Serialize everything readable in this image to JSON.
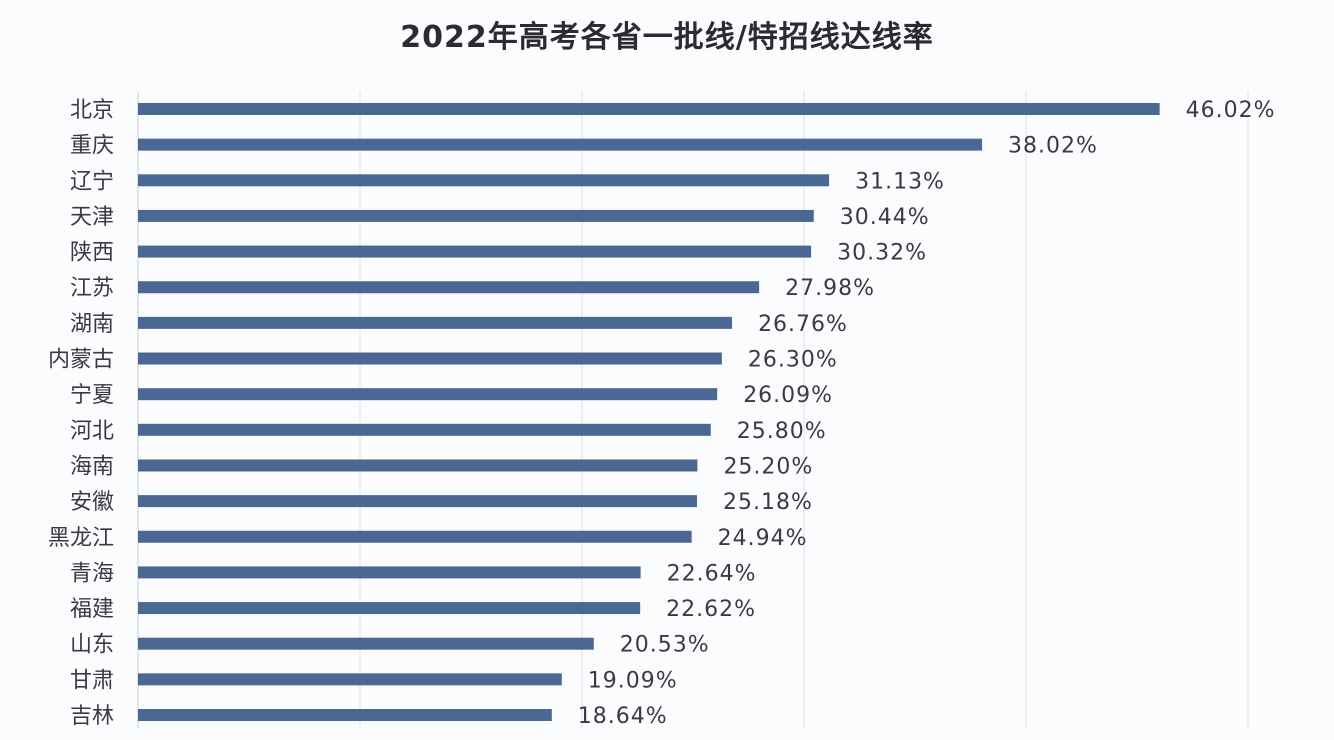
{
  "chart_data": {
    "type": "bar",
    "orientation": "horizontal",
    "title": "2022年高考各省一批线/特招线达线率",
    "xlabel": "",
    "ylabel": "",
    "xlim": [
      0,
      50
    ],
    "grid": true,
    "grid_step": 10,
    "bar_color": "#4b6894",
    "categories": [
      "北京",
      "重庆",
      "辽宁",
      "天津",
      "陕西",
      "江苏",
      "湖南",
      "内蒙古",
      "宁夏",
      "河北",
      "海南",
      "安徽",
      "黑龙江",
      "青海",
      "福建",
      "山东",
      "甘肃",
      "吉林"
    ],
    "values": [
      46.02,
      38.02,
      31.13,
      30.44,
      30.32,
      27.98,
      26.76,
      26.3,
      26.09,
      25.8,
      25.2,
      25.18,
      24.94,
      22.64,
      22.62,
      20.53,
      19.09,
      18.64
    ],
    "data_labels": [
      "46.02%",
      "38.02%",
      "31.13%",
      "30.44%",
      "30.32%",
      "27.98%",
      "26.76%",
      "26.30%",
      "26.09%",
      "25.80%",
      "25.20%",
      "25.18%",
      "24.94%",
      "22.64%",
      "22.62%",
      "20.53%",
      "19.09%",
      "18.64%"
    ]
  }
}
